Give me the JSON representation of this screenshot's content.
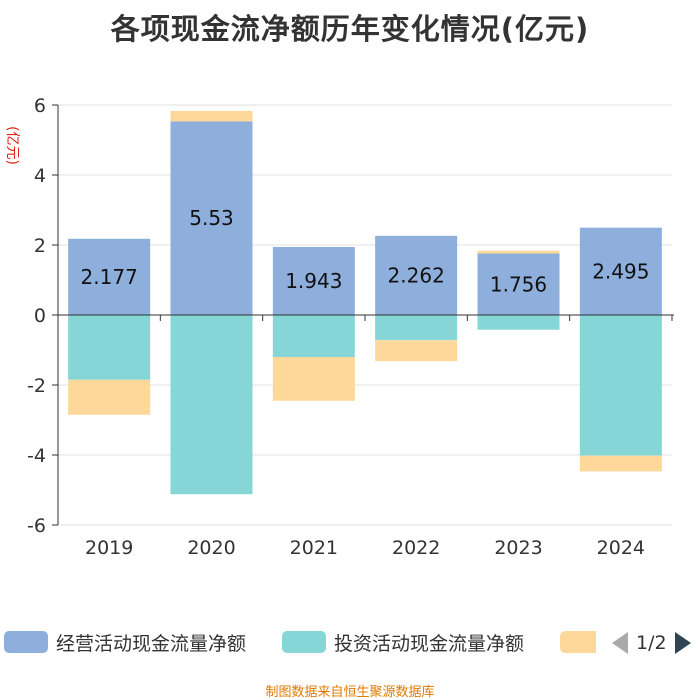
{
  "title": "各项现金流净额历年变化情况(亿元)",
  "source": "制图数据来自恒生聚源数据库",
  "pager": {
    "text": "1/2"
  },
  "chart_data": {
    "type": "bar",
    "stacked": true,
    "title": "各项现金流净额历年变化情况(亿元)",
    "ylabel": "(亿元)",
    "xlabel": "",
    "ylim": [
      -6,
      6
    ],
    "yticks": [
      -6,
      -4,
      -2,
      0,
      2,
      4,
      6
    ],
    "categories": [
      "2019",
      "2020",
      "2021",
      "2022",
      "2023",
      "2024"
    ],
    "series": [
      {
        "name": "经营活动现金流量净额",
        "color": "#8eaedc",
        "values": [
          2.177,
          5.53,
          1.943,
          2.262,
          1.756,
          2.495
        ],
        "labels": [
          "2.177",
          "5.53",
          "1.943",
          "2.262",
          "1.756",
          "2.495"
        ]
      },
      {
        "name": "投资活动现金流量净额",
        "color": "#86d6d8",
        "values": [
          -1.85,
          -5.12,
          -1.2,
          -0.72,
          -0.42,
          -4.02
        ]
      },
      {
        "name": "",
        "color": "#fdd89a",
        "values": [
          -1.0,
          0.3,
          -1.25,
          -0.6,
          0.08,
          -0.45
        ]
      }
    ]
  }
}
